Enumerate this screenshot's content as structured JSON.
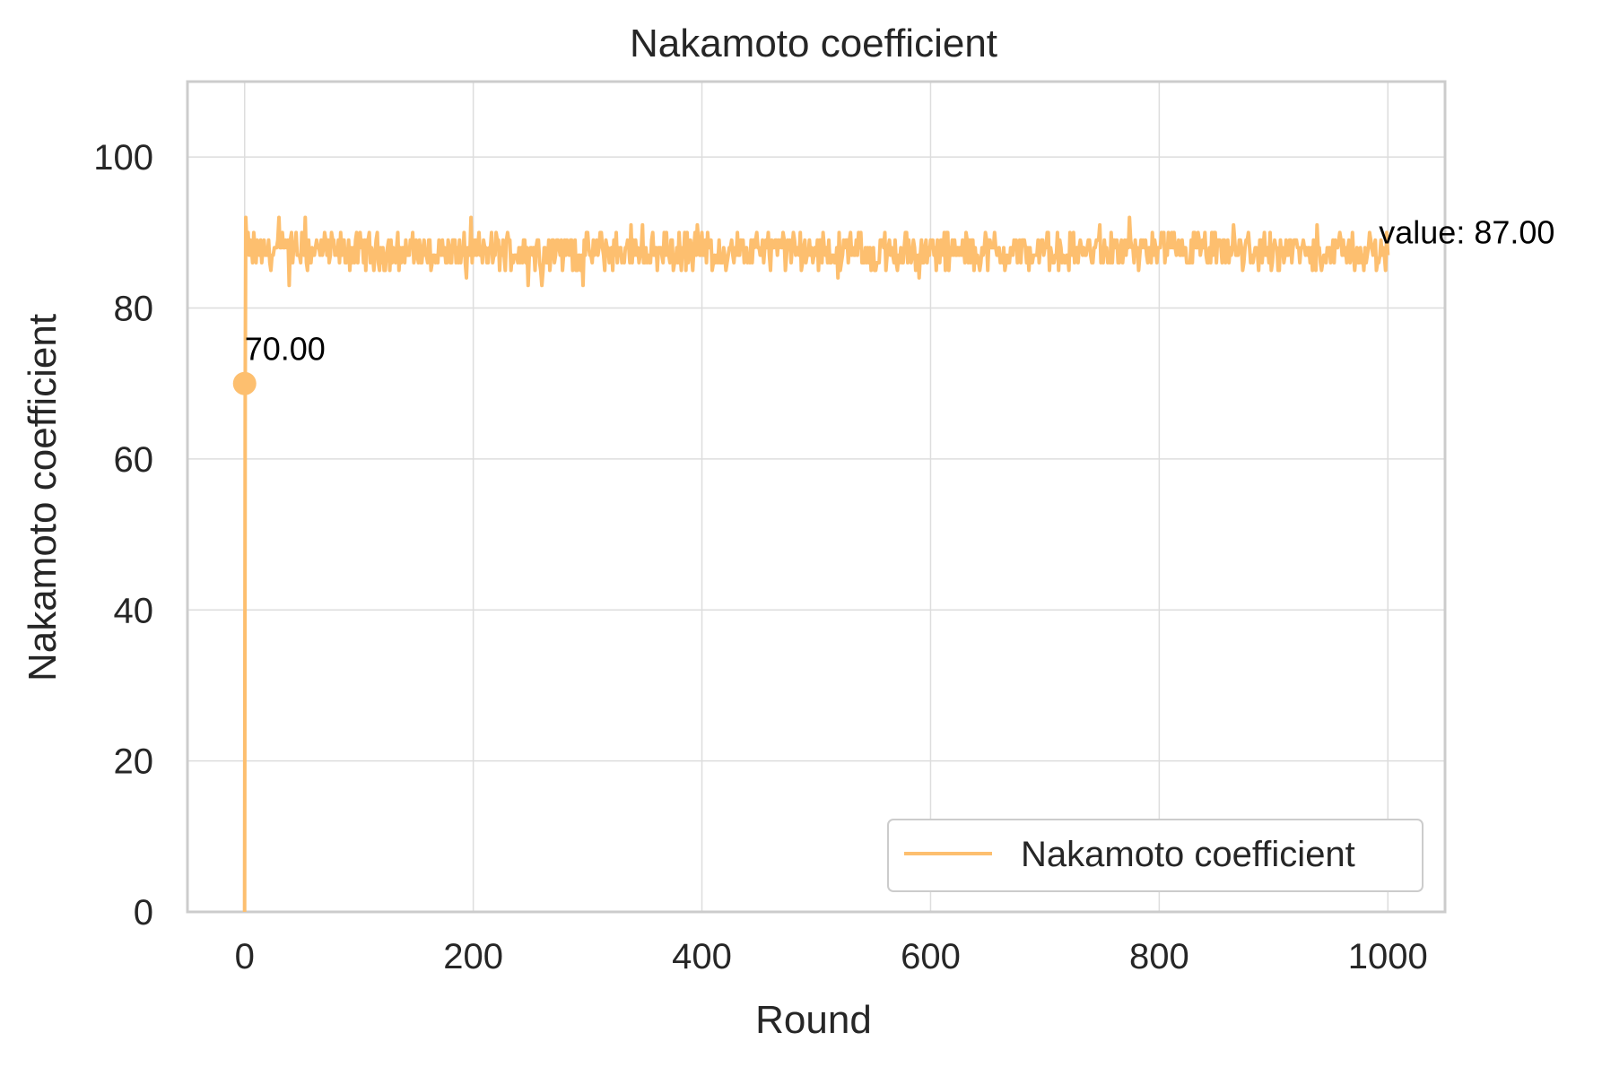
{
  "chart_data": {
    "type": "line",
    "title": "Nakamoto coefficient",
    "xlabel": "Round",
    "ylabel": "Nakamoto coefficient",
    "xlim": [
      -50,
      1050
    ],
    "ylim": [
      0,
      110
    ],
    "x_ticks": [
      0,
      200,
      400,
      600,
      800,
      1000
    ],
    "y_ticks": [
      0,
      20,
      40,
      60,
      80,
      100
    ],
    "x_tick_labels": [
      "0",
      "200",
      "400",
      "600",
      "800",
      1000
    ],
    "y_tick_labels": [
      "0",
      "20",
      "40",
      "60",
      "80",
      "100"
    ],
    "grid": true,
    "legend_position": "lower-right",
    "series": [
      {
        "name": "Nakamoto coefficient",
        "color": "#fdbf6f",
        "x_start": 0,
        "x_end": 1000,
        "start_values": [
          0,
          70,
          92
        ],
        "baseline": 87.5,
        "band": [
          83,
          92
        ],
        "last_value": 87
      }
    ],
    "annotations": [
      {
        "text": "70.00",
        "x": 0,
        "y": 70,
        "marker": true
      },
      {
        "text": "value: 87.00",
        "x": 1000,
        "y": 87
      }
    ]
  }
}
